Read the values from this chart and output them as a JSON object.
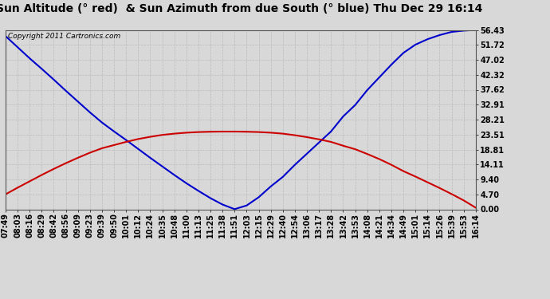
{
  "title": "Sun Altitude (° red)  & Sun Azimuth from due South (° blue) Thu Dec 29 16:14",
  "copyright": "Copyright 2011 Cartronics.com",
  "yticks": [
    0.0,
    4.7,
    9.4,
    14.11,
    18.81,
    23.51,
    28.21,
    32.91,
    37.62,
    42.32,
    47.02,
    51.72,
    56.43
  ],
  "ylim": [
    0.0,
    56.43
  ],
  "x_labels": [
    "07:49",
    "08:03",
    "08:16",
    "08:29",
    "08:42",
    "08:56",
    "09:09",
    "09:23",
    "09:39",
    "09:50",
    "10:01",
    "10:12",
    "10:24",
    "10:35",
    "10:48",
    "11:00",
    "11:13",
    "11:25",
    "11:38",
    "11:51",
    "12:03",
    "12:15",
    "12:29",
    "12:40",
    "12:54",
    "13:06",
    "13:17",
    "13:28",
    "13:42",
    "13:53",
    "14:08",
    "14:21",
    "14:34",
    "14:49",
    "15:01",
    "15:14",
    "15:26",
    "15:39",
    "15:53",
    "16:14"
  ],
  "blue_data": [
    54.5,
    51.0,
    47.5,
    44.2,
    40.8,
    37.3,
    33.9,
    30.5,
    27.3,
    24.5,
    21.8,
    19.0,
    16.2,
    13.5,
    10.8,
    8.2,
    5.8,
    3.5,
    1.5,
    0.05,
    1.2,
    3.8,
    7.2,
    10.2,
    14.0,
    17.5,
    21.0,
    24.5,
    29.2,
    32.8,
    37.5,
    41.5,
    45.5,
    49.2,
    51.8,
    53.5,
    54.8,
    55.8,
    56.2,
    56.43
  ],
  "red_data": [
    4.7,
    6.8,
    8.8,
    10.8,
    12.7,
    14.5,
    16.2,
    17.8,
    19.2,
    20.2,
    21.2,
    22.1,
    22.8,
    23.4,
    23.8,
    24.1,
    24.3,
    24.4,
    24.45,
    24.45,
    24.4,
    24.3,
    24.1,
    23.8,
    23.3,
    22.7,
    22.0,
    21.2,
    20.0,
    18.9,
    17.4,
    15.8,
    14.0,
    12.0,
    10.3,
    8.5,
    6.7,
    4.8,
    2.8,
    0.5
  ],
  "line_color_blue": "#0000cc",
  "line_color_red": "#cc0000",
  "bg_color": "#d8d8d8",
  "plot_bg_color": "#d8d8d8",
  "grid_color": "#bbbbbb",
  "title_fontsize": 10,
  "copyright_fontsize": 6.5,
  "tick_fontsize": 7,
  "linewidth": 1.5
}
